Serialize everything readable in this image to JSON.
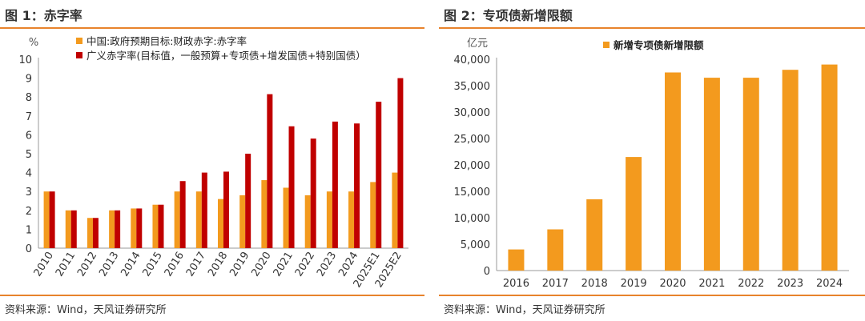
{
  "chart_data": [
    {
      "type": "bar",
      "title": "图 1：赤字率",
      "ylabel": "%",
      "ylim": [
        0,
        10
      ],
      "yticks": [
        "0",
        "1",
        "2",
        "3",
        "4",
        "5",
        "6",
        "7",
        "8",
        "9",
        "10"
      ],
      "legend_position": "top-left",
      "categories": [
        "2010",
        "2011",
        "2012",
        "2013",
        "2014",
        "2015",
        "2016",
        "2017",
        "2018",
        "2019",
        "2020",
        "2021",
        "2022",
        "2023",
        "2024",
        "2025E1",
        "2025E2"
      ],
      "series": [
        {
          "name": "中国:政府预期目标:财政赤字:赤字率",
          "color": "#f39a1e",
          "values": [
            3.0,
            2.0,
            1.6,
            2.0,
            2.1,
            2.3,
            3.0,
            3.0,
            2.6,
            2.8,
            3.6,
            3.2,
            2.8,
            3.0,
            3.0,
            3.5,
            4.0
          ]
        },
        {
          "name": "广义赤字率(目标值，一般预算+专项债+增发国债+特别国债）",
          "color": "#c00000",
          "values": [
            3.0,
            2.0,
            1.6,
            2.0,
            2.1,
            2.3,
            3.55,
            4.0,
            4.05,
            5.0,
            8.15,
            6.45,
            5.8,
            6.7,
            6.6,
            7.75,
            9.0
          ]
        }
      ],
      "source": "资料来源：Wind，天风证券研究所"
    },
    {
      "type": "bar",
      "title": "图 2：专项债新增限额",
      "ylabel": "亿元",
      "ylim": [
        0,
        40000
      ],
      "yticks": [
        "0",
        "5,000",
        "10,000",
        "15,000",
        "20,000",
        "25,000",
        "30,000",
        "35,000",
        "40,000"
      ],
      "legend_position": "top-center",
      "categories": [
        "2016",
        "2017",
        "2018",
        "2019",
        "2020",
        "2021",
        "2022",
        "2023",
        "2024"
      ],
      "series": [
        {
          "name": "新增专项债新增限额",
          "color": "#f39a1e",
          "values": [
            4000,
            7800,
            13500,
            21500,
            37500,
            36500,
            36500,
            38000,
            39000
          ]
        }
      ],
      "source": "资料来源：Wind，天风证券研究所"
    }
  ]
}
